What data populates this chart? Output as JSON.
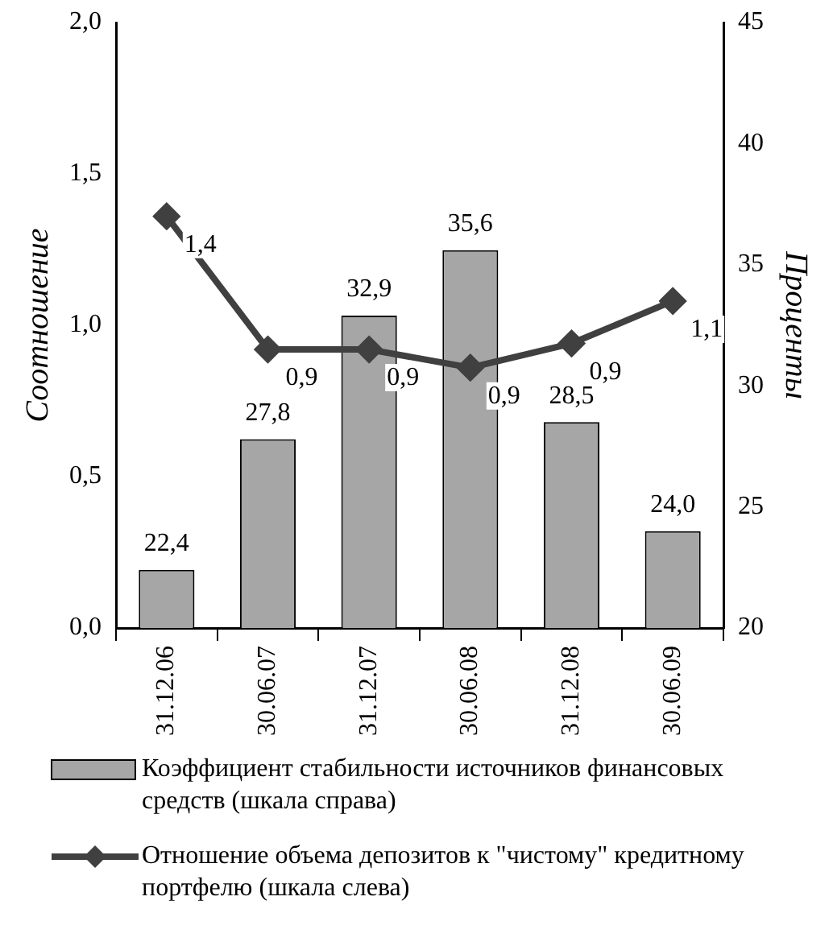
{
  "chart_data": {
    "type": "bar",
    "ylabel": "Соотношение",
    "y2label": "Проценты",
    "categories": [
      "31.12.06",
      "30.06.07",
      "31.12.07",
      "30.06.08",
      "31.12.08",
      "30.06.09"
    ],
    "series": [
      {
        "name": "Коэффициент стабильности источников финансовых средств (шкала справа)",
        "axis": "y2",
        "color": "#a6a6a6",
        "values": [
          22.4,
          27.8,
          32.9,
          35.6,
          28.5,
          24.0
        ],
        "value_labels": [
          "22,4",
          "27,8",
          "32,9",
          "35,6",
          "28,5",
          "24,0"
        ]
      },
      {
        "name": "Отношение объема депозитов к \"чистому\" кредитному портфелю (шкала слева)",
        "type": "line",
        "axis": "y",
        "color": "#404040",
        "marker": "diamond",
        "values": [
          1.36,
          0.92,
          0.92,
          0.86,
          0.94,
          1.08
        ],
        "value_labels": [
          "1,4",
          "0,9",
          "0,9",
          "0,9",
          "0,9",
          "1,1"
        ]
      }
    ],
    "ylim": [
      0,
      2
    ],
    "yticks": [
      {
        "value": 0,
        "label": "0,0"
      },
      {
        "value": 0.5,
        "label": "0,5"
      },
      {
        "value": 1,
        "label": "1,0"
      },
      {
        "value": 1.5,
        "label": "1,5"
      },
      {
        "value": 2,
        "label": "2,0"
      }
    ],
    "y2lim": [
      20,
      45
    ],
    "y2ticks": [
      20,
      25,
      30,
      35,
      40,
      45
    ],
    "grid": false,
    "legend": "bottom"
  }
}
